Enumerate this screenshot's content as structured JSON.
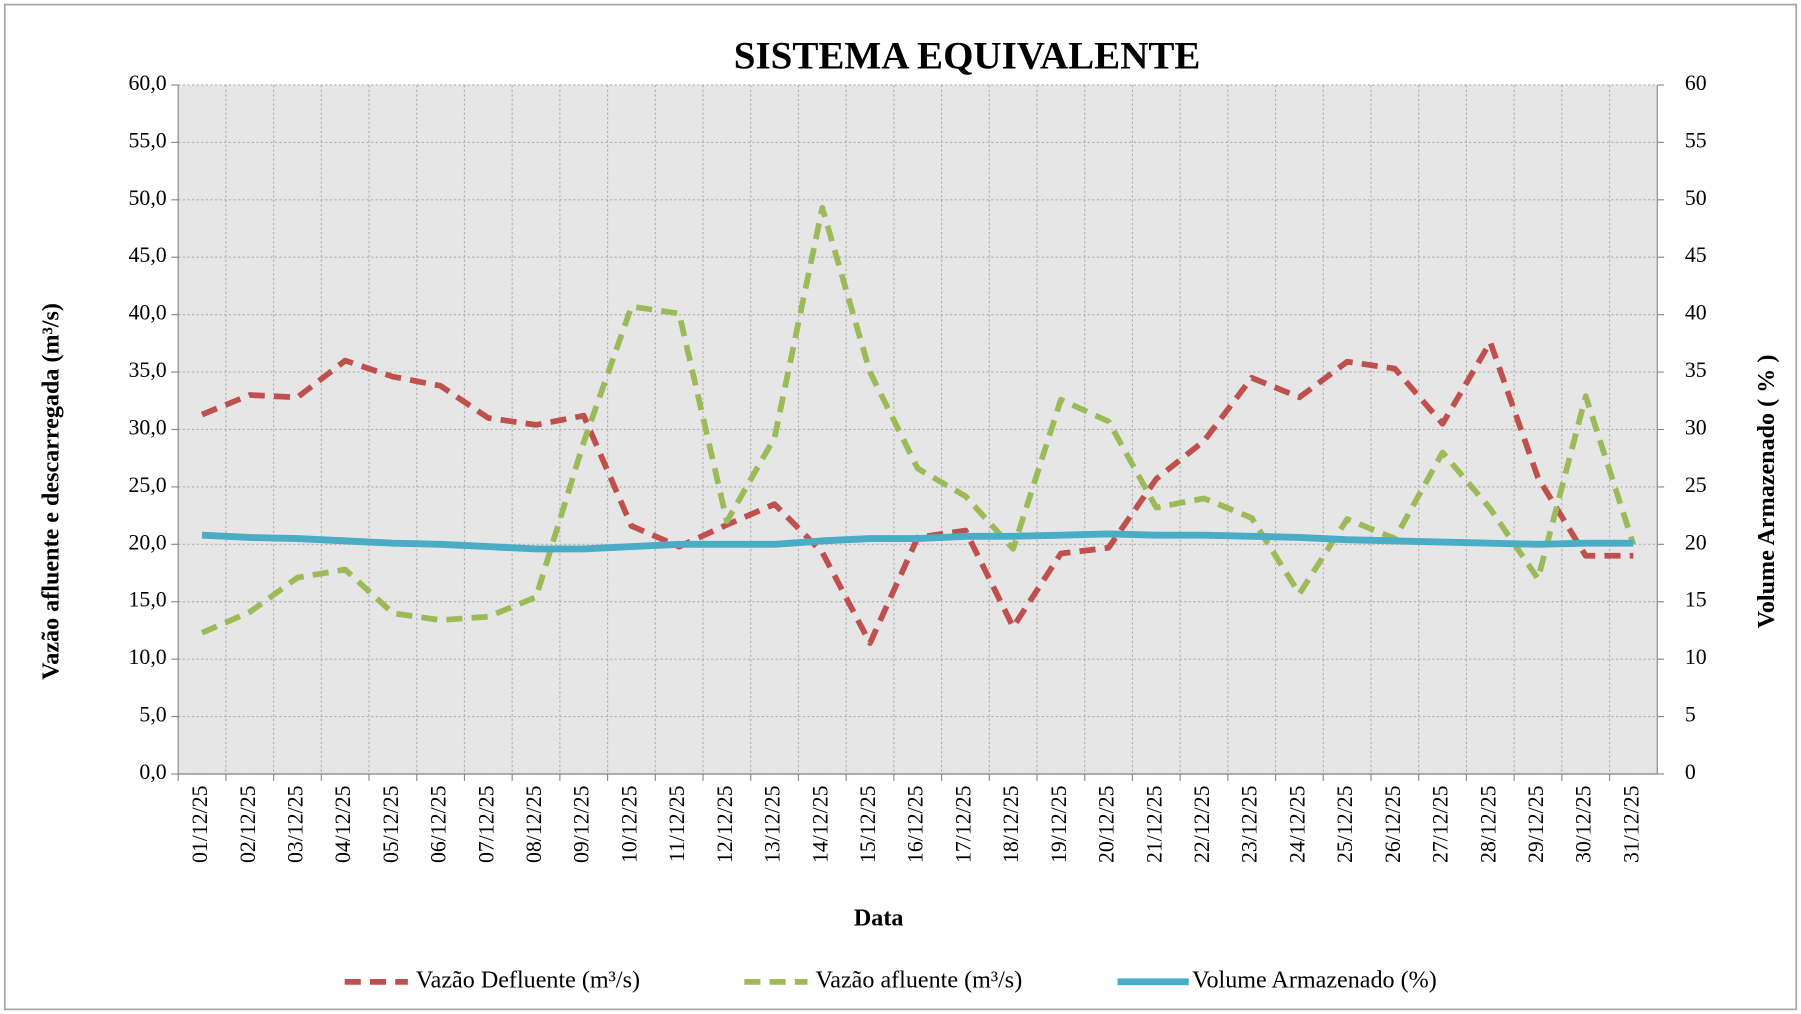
{
  "chart_data": {
    "type": "line",
    "title": "SISTEMA EQUIVALENTE",
    "x_label": "Data",
    "y_label": "Vazão afluente e descarregada (m³/s)",
    "y2_label": "Volume Armazenado ( % )",
    "categories": [
      "01/12/25",
      "02/12/25",
      "03/12/25",
      "04/12/25",
      "05/12/25",
      "06/12/25",
      "07/12/25",
      "08/12/25",
      "09/12/25",
      "10/12/25",
      "11/12/25",
      "12/12/25",
      "13/12/25",
      "14/12/25",
      "15/12/25",
      "16/12/25",
      "17/12/25",
      "18/12/25",
      "19/12/25",
      "20/12/25",
      "21/12/25",
      "22/12/25",
      "23/12/25",
      "24/12/25",
      "25/12/25",
      "26/12/25",
      "27/12/25",
      "28/12/25",
      "29/12/25",
      "30/12/25",
      "31/12/25"
    ],
    "series": [
      {
        "name": "Vazão Defluente (m³/s)",
        "color": "#c0504d",
        "dashed": true,
        "values": [
          31.3,
          33.0,
          32.8,
          36.0,
          34.6,
          33.8,
          31.0,
          30.4,
          31.2,
          21.6,
          19.8,
          21.7,
          23.5,
          19.3,
          11.4,
          20.6,
          21.2,
          12.8,
          19.2,
          19.7,
          25.7,
          29.0,
          34.5,
          32.8,
          35.9,
          35.3,
          30.5,
          37.6,
          25.8,
          19.0,
          19.0
        ]
      },
      {
        "name": "Vazão afluente (m³/s)",
        "color": "#9bbb59",
        "dashed": true,
        "values": [
          12.3,
          14.1,
          17.1,
          17.8,
          14.0,
          13.4,
          13.7,
          15.4,
          28.9,
          40.7,
          40.1,
          22.0,
          29.3,
          49.3,
          35.0,
          26.6,
          24.2,
          19.6,
          32.6,
          30.7,
          23.2,
          24.0,
          22.3,
          15.7,
          22.2,
          20.5,
          28.0,
          23.1,
          17.0,
          32.9,
          20.0
        ]
      },
      {
        "name": "Volume Armazenado (%)",
        "color": "#4bacc6",
        "dashed": false,
        "axis": "y2",
        "values": [
          20.8,
          20.6,
          20.5,
          20.3,
          20.1,
          20.0,
          19.8,
          19.6,
          19.6,
          19.8,
          20.0,
          20.0,
          20.0,
          20.3,
          20.5,
          20.5,
          20.7,
          20.7,
          20.8,
          20.9,
          20.8,
          20.8,
          20.7,
          20.6,
          20.4,
          20.3,
          20.2,
          20.1,
          20.0,
          20.1,
          20.1
        ]
      }
    ],
    "ylim": [
      0,
      60
    ],
    "yticks": [
      {
        "value": 0,
        "label": "0,0"
      },
      {
        "value": 5,
        "label": "5,0"
      },
      {
        "value": 10,
        "label": "10,0"
      },
      {
        "value": 15,
        "label": "15,0"
      },
      {
        "value": 20,
        "label": "20,0"
      },
      {
        "value": 25,
        "label": "25,0"
      },
      {
        "value": 30,
        "label": "30,0"
      },
      {
        "value": 35,
        "label": "35,0"
      },
      {
        "value": 40,
        "label": "40,0"
      },
      {
        "value": 45,
        "label": "45,0"
      },
      {
        "value": 50,
        "label": "50,0"
      },
      {
        "value": 55,
        "label": "55,0"
      },
      {
        "value": 60,
        "label": "60,0"
      }
    ],
    "y2lim": [
      0,
      60
    ],
    "y2ticks": [
      0,
      5,
      10,
      15,
      20,
      25,
      30,
      35,
      40,
      45,
      50,
      55,
      60
    ],
    "grid": true,
    "legend": "bottom"
  }
}
